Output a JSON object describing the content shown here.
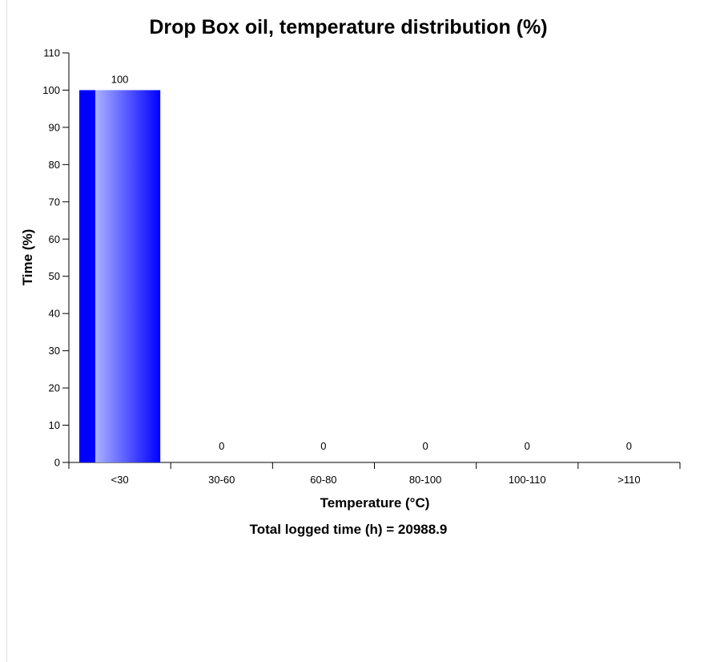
{
  "chart_data": {
    "type": "bar",
    "title": "Drop Box oil, temperature distribution (%)",
    "xlabel": "Temperature (°C)",
    "ylabel": "Time (%)",
    "categories": [
      "<30",
      "30-60",
      "60-80",
      "80-100",
      "100-110",
      ">110"
    ],
    "values": [
      100,
      0,
      0,
      0,
      0,
      0
    ],
    "data_labels": [
      "100",
      "0",
      "0",
      "0",
      "0",
      "0"
    ],
    "ylim": [
      0,
      110
    ],
    "yticks": [
      0,
      10,
      20,
      30,
      40,
      50,
      60,
      70,
      80,
      90,
      100,
      110
    ],
    "grid": false,
    "legend": "none",
    "bar_colors": {
      "edge": "#0000ff",
      "highlight": "#aab0ff"
    }
  },
  "footer": {
    "total_logged_label": "Total logged time (h) = 20988.9"
  }
}
